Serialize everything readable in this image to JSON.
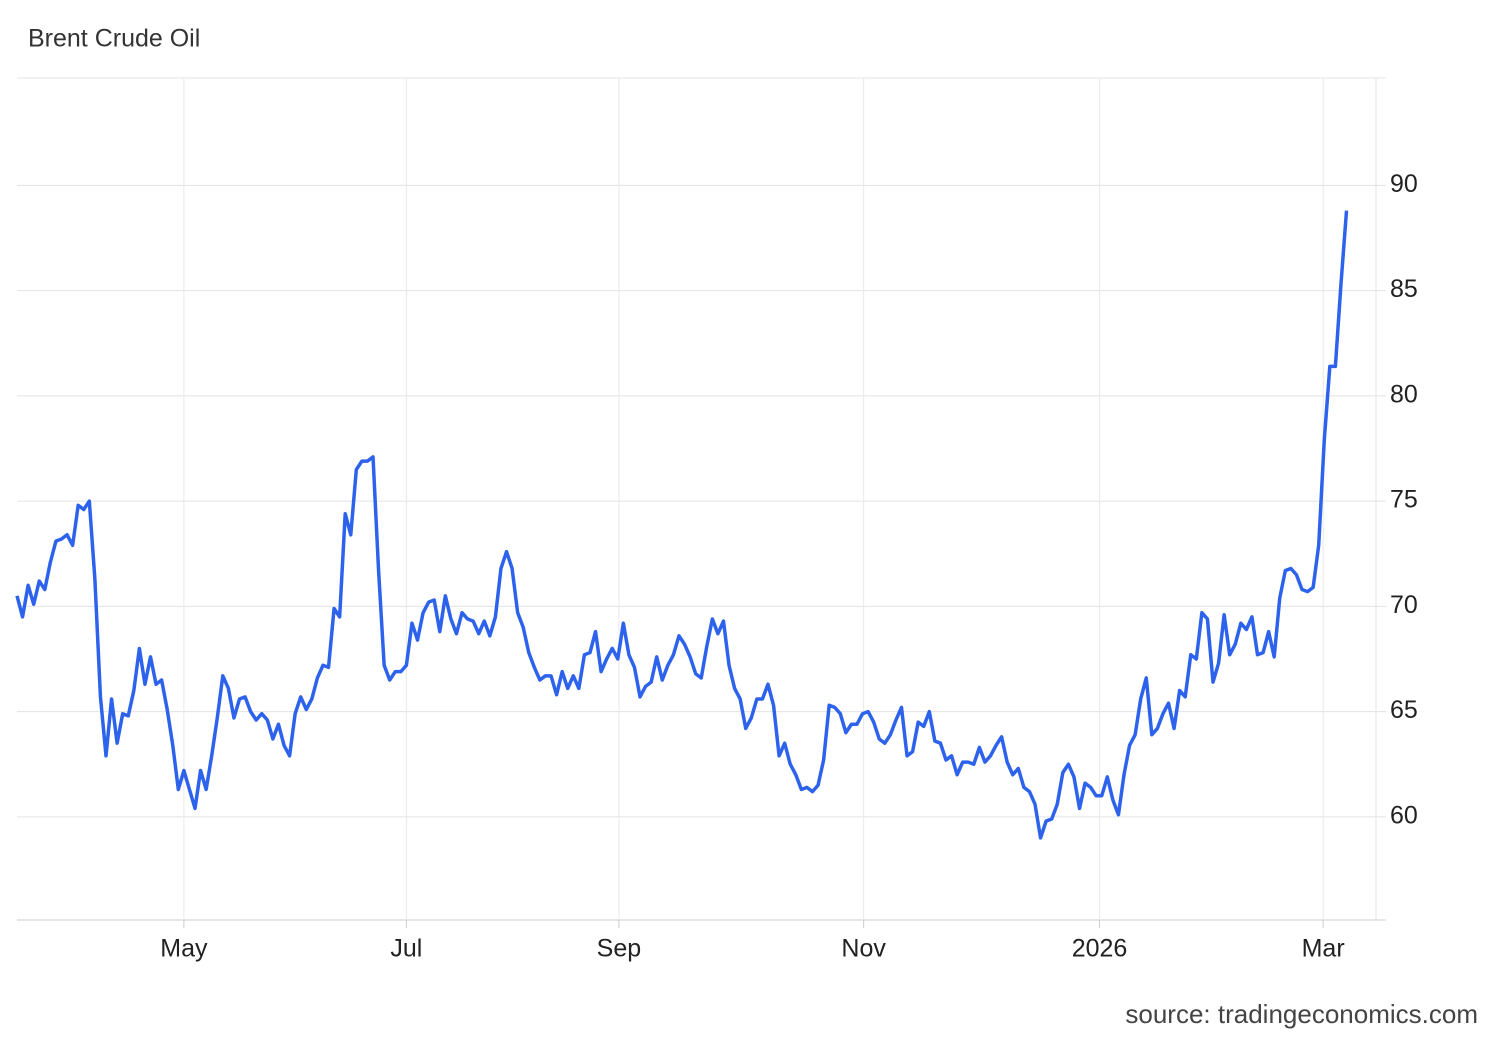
{
  "chart_data": {
    "type": "line",
    "title": "Brent Crude Oil",
    "source": "source: tradingeconomics.com",
    "color": "#2d63ec",
    "grid": true,
    "ylim": [
      55.1,
      95.1
    ],
    "yticks": [
      60,
      65,
      70,
      75,
      80,
      85,
      90
    ],
    "xlim": [
      0,
      244.3
    ],
    "xticks": [
      {
        "value": 30,
        "label": "May"
      },
      {
        "value": 70,
        "label": "Jul"
      },
      {
        "value": 108.2,
        "label": "Sep"
      },
      {
        "value": 152.2,
        "label": "Nov"
      },
      {
        "value": 194.6,
        "label": "2026"
      },
      {
        "value": 234.8,
        "label": "Mar"
      }
    ],
    "values": [
      70.5,
      69.5,
      71.0,
      70.1,
      71.2,
      70.8,
      72.1,
      73.1,
      73.2,
      73.4,
      72.9,
      74.8,
      74.6,
      75.0,
      71.3,
      65.7,
      62.9,
      65.6,
      63.5,
      64.9,
      64.8,
      66.0,
      68.0,
      66.3,
      67.6,
      66.3,
      66.5,
      65.1,
      63.4,
      61.3,
      62.2,
      61.3,
      60.4,
      62.2,
      61.3,
      62.9,
      64.7,
      66.7,
      66.1,
      64.7,
      65.6,
      65.7,
      65.0,
      64.6,
      64.9,
      64.6,
      63.7,
      64.4,
      63.4,
      62.9,
      64.9,
      65.7,
      65.1,
      65.6,
      66.6,
      67.2,
      67.1,
      69.9,
      69.5,
      74.4,
      73.4,
      76.5,
      76.9,
      76.9,
      77.1,
      71.7,
      67.2,
      66.5,
      66.9,
      66.9,
      67.2,
      69.2,
      68.4,
      69.7,
      70.2,
      70.3,
      68.8,
      70.5,
      69.4,
      68.7,
      69.7,
      69.4,
      69.3,
      68.7,
      69.3,
      68.6,
      69.5,
      71.8,
      72.6,
      71.8,
      69.7,
      69.0,
      67.8,
      67.1,
      66.5,
      66.7,
      66.7,
      65.8,
      66.9,
      66.1,
      66.7,
      66.1,
      67.7,
      67.8,
      68.8,
      66.9,
      67.5,
      68.0,
      67.5,
      69.2,
      67.7,
      67.1,
      65.7,
      66.2,
      66.4,
      67.6,
      66.5,
      67.2,
      67.7,
      68.6,
      68.2,
      67.6,
      66.8,
      66.6,
      68.1,
      69.4,
      68.7,
      69.3,
      67.2,
      66.1,
      65.6,
      64.2,
      64.7,
      65.6,
      65.6,
      66.3,
      65.3,
      62.9,
      63.5,
      62.5,
      62.0,
      61.3,
      61.4,
      61.2,
      61.5,
      62.7,
      65.3,
      65.2,
      64.9,
      64.0,
      64.4,
      64.4,
      64.9,
      65.0,
      64.5,
      63.7,
      63.5,
      63.9,
      64.6,
      65.2,
      62.9,
      63.1,
      64.5,
      64.3,
      65.0,
      63.6,
      63.5,
      62.7,
      62.9,
      62.0,
      62.6,
      62.6,
      62.5,
      63.3,
      62.6,
      62.9,
      63.4,
      63.8,
      62.6,
      62.0,
      62.3,
      61.4,
      61.2,
      60.6,
      59.0,
      59.8,
      59.9,
      60.6,
      62.1,
      62.5,
      61.9,
      60.4,
      61.6,
      61.4,
      61.0,
      61.0,
      61.9,
      60.8,
      60.1,
      62.0,
      63.4,
      63.9,
      65.6,
      66.6,
      63.9,
      64.2,
      64.9,
      65.4,
      64.2,
      66.0,
      65.7,
      67.7,
      67.5,
      69.7,
      69.4,
      66.4,
      67.3,
      69.6,
      67.7,
      68.2,
      69.2,
      68.9,
      69.5,
      67.7,
      67.8,
      68.8,
      67.6,
      70.4,
      71.7,
      71.8,
      71.5,
      70.8,
      70.7,
      70.9,
      72.9,
      77.9,
      81.4,
      81.4,
      85.3,
      88.8
    ]
  }
}
